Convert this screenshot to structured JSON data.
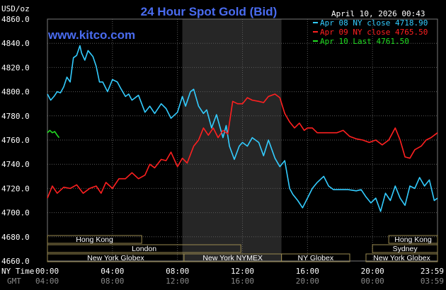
{
  "chart_data": {
    "type": "line",
    "title": "24 Hour Spot Gold (Bid)",
    "watermark": "www.kitco.com",
    "ylabel": "USD/oz",
    "timestamp": "April 10, 2026 00:43",
    "ylim": [
      4660,
      4860
    ],
    "yticks": [
      "4860.0",
      "4840.0",
      "4820.0",
      "4800.0",
      "4780.0",
      "4760.0",
      "4740.0",
      "4720.0",
      "4700.0",
      "4680.0",
      "4660.0"
    ],
    "xlim": [
      0,
      24
    ],
    "x_axis_labels": [
      "NY Time",
      "GMT"
    ],
    "xticks": [
      {
        "h": 0,
        "ny": "00:00",
        "gmt": "04:00"
      },
      {
        "h": 4,
        "ny": "04:00",
        "gmt": "08:00"
      },
      {
        "h": 8,
        "ny": "08:00",
        "gmt": "12:00"
      },
      {
        "h": 12,
        "ny": "12:00",
        "gmt": "16:00"
      },
      {
        "h": 16,
        "ny": "16:00",
        "gmt": "20:00"
      },
      {
        "h": 20,
        "ny": "20:00",
        "gmt": "00:00"
      },
      {
        "h": 24,
        "ny": "23:59",
        "gmt": "03:59"
      }
    ],
    "shaded_range_hours": [
      8.3,
      14.4
    ],
    "legend": [
      {
        "label": "Apr 08 NY close 4718.90",
        "color": "#33ccff"
      },
      {
        "label": "Apr 09 NY close 4765.50",
        "color": "#ff2020"
      },
      {
        "label": "Apr 10 Last 4761.50",
        "color": "#22dd22"
      }
    ],
    "sessions": [
      {
        "name": "Hong Kong",
        "start": 0,
        "end": 5.8,
        "row": 0
      },
      {
        "name": "London",
        "start": 0,
        "end": 11.9,
        "row": 1
      },
      {
        "name": "New York Globex",
        "start": 0,
        "end": 8.4,
        "row": 2
      },
      {
        "name": "New York NYMEX",
        "start": 8.4,
        "end": 14.4,
        "row": 2
      },
      {
        "name": "NY Globex",
        "start": 14.4,
        "end": 18.6,
        "row": 2
      },
      {
        "name": "Hong Kong",
        "start": 21.0,
        "end": 24,
        "row": 0
      },
      {
        "name": "Sydney",
        "start": 20.0,
        "end": 24,
        "row": 1
      },
      {
        "name": "New York Globex",
        "start": 19.6,
        "end": 24,
        "row": 2
      }
    ],
    "series": [
      {
        "name": "Apr 08 NY close 4718.90",
        "color": "#33ccff",
        "x": [
          0,
          0.2,
          0.4,
          0.6,
          0.8,
          1.0,
          1.2,
          1.4,
          1.6,
          1.8,
          2.0,
          2.1,
          2.3,
          2.5,
          2.8,
          3.0,
          3.2,
          3.4,
          3.7,
          4.0,
          4.3,
          4.5,
          4.8,
          5.0,
          5.2,
          5.6,
          6.0,
          6.3,
          6.6,
          7.0,
          7.3,
          7.6,
          8.0,
          8.3,
          8.5,
          8.8,
          9.0,
          9.3,
          9.6,
          9.8,
          10.1,
          10.4,
          10.8,
          11.0,
          11.2,
          11.5,
          11.8,
          12.0,
          12.3,
          12.6,
          13.0,
          13.3,
          13.6,
          14.0,
          14.3,
          14.6,
          14.9,
          15.1,
          15.4,
          15.7,
          16.0,
          16.3,
          16.6,
          17.0,
          17.3,
          17.6,
          18.0,
          18.5,
          19.0,
          19.3,
          19.6,
          19.9,
          20.2,
          20.5,
          20.8,
          21.1,
          21.4,
          21.7,
          22.0,
          22.3,
          22.6,
          22.9,
          23.2,
          23.5,
          23.8,
          24.0
        ],
        "y": [
          4798,
          4793,
          4796,
          4800,
          4799,
          4804,
          4812,
          4808,
          4828,
          4830,
          4838,
          4832,
          4826,
          4834,
          4829,
          4821,
          4808,
          4808,
          4800,
          4810,
          4808,
          4803,
          4796,
          4798,
          4793,
          4797,
          4783,
          4788,
          4782,
          4790,
          4786,
          4778,
          4783,
          4796,
          4788,
          4800,
          4802,
          4788,
          4782,
          4785,
          4770,
          4781,
          4762,
          4772,
          4755,
          4744,
          4755,
          4758,
          4755,
          4762,
          4758,
          4747,
          4760,
          4745,
          4738,
          4743,
          4720,
          4715,
          4710,
          4704,
          4712,
          4720,
          4725,
          4730,
          4722,
          4719,
          4719,
          4719,
          4718,
          4719,
          4713,
          4708,
          4712,
          4701,
          4716,
          4710,
          4722,
          4712,
          4706,
          4722,
          4720,
          4729,
          4722,
          4727,
          4710,
          4712
        ]
      },
      {
        "name": "Apr 09 NY close 4765.50",
        "color": "#ff2020",
        "x": [
          0,
          0.3,
          0.6,
          1.0,
          1.4,
          1.8,
          2.2,
          2.6,
          3.0,
          3.3,
          3.6,
          4.0,
          4.4,
          4.8,
          5.2,
          5.6,
          6.0,
          6.3,
          6.6,
          7.0,
          7.3,
          7.6,
          8.0,
          8.3,
          8.6,
          9.0,
          9.3,
          9.6,
          9.9,
          10.2,
          10.5,
          10.8,
          11.1,
          11.4,
          11.7,
          12.0,
          12.3,
          12.6,
          13.0,
          13.3,
          13.6,
          14.0,
          14.3,
          14.6,
          14.9,
          15.2,
          15.5,
          15.8,
          16.0,
          16.3,
          16.6,
          17.0,
          17.4,
          17.8,
          18.2,
          18.6,
          19.0,
          19.4,
          19.8,
          20.2,
          20.6,
          21.0,
          21.4,
          21.7,
          22.0,
          22.3,
          22.6,
          23.0,
          23.3,
          23.6,
          24.0
        ],
        "y": [
          4712,
          4722,
          4716,
          4721,
          4720,
          4723,
          4716,
          4720,
          4722,
          4716,
          4725,
          4720,
          4728,
          4728,
          4733,
          4728,
          4731,
          4740,
          4737,
          4744,
          4743,
          4750,
          4738,
          4745,
          4741,
          4755,
          4760,
          4770,
          4764,
          4770,
          4762,
          4768,
          4765,
          4792,
          4790,
          4790,
          4795,
          4793,
          4792,
          4791,
          4796,
          4798,
          4795,
          4782,
          4775,
          4770,
          4774,
          4768,
          4770,
          4770,
          4766,
          4766,
          4766,
          4766,
          4768,
          4763,
          4761,
          4760,
          4758,
          4760,
          4756,
          4760,
          4770,
          4760,
          4746,
          4745,
          4752,
          4755,
          4760,
          4762,
          4766
        ]
      },
      {
        "name": "Apr 10 Last 4761.50",
        "color": "#22dd22",
        "x": [
          0,
          0.15,
          0.3,
          0.45,
          0.6,
          0.72
        ],
        "y": [
          4766,
          4768,
          4766,
          4767,
          4764,
          4762
        ]
      }
    ]
  }
}
